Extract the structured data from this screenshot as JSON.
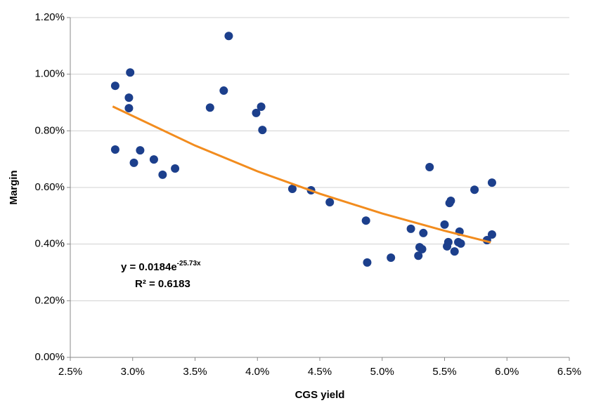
{
  "chart_data": {
    "type": "scatter",
    "x_label": "CGS yield",
    "y_label": "Margin",
    "xlim": [
      2.5,
      6.5
    ],
    "ylim": [
      0,
      1.2
    ],
    "xticks": [
      {
        "value": 2.5,
        "label": "2.5%"
      },
      {
        "value": 3.0,
        "label": "3.0%"
      },
      {
        "value": 3.5,
        "label": "3.5%"
      },
      {
        "value": 4.0,
        "label": "4.0%"
      },
      {
        "value": 4.5,
        "label": "4.5%"
      },
      {
        "value": 5.0,
        "label": "5.0%"
      },
      {
        "value": 5.5,
        "label": "5.5%"
      },
      {
        "value": 6.0,
        "label": "6.0%"
      },
      {
        "value": 6.5,
        "label": "6.5%"
      }
    ],
    "yticks": [
      {
        "value": 0,
        "label": "0.00%"
      },
      {
        "value": 0.2,
        "label": "0.20%"
      },
      {
        "value": 0.4,
        "label": "0.40%"
      },
      {
        "value": 0.6,
        "label": "0.60%"
      },
      {
        "value": 0.8,
        "label": "0.80%"
      },
      {
        "value": 1.0,
        "label": "1.00%"
      },
      {
        "value": 1.2,
        "label": "1.20%"
      }
    ],
    "grid": true,
    "color": "#1c3f8c",
    "x": [
      2.86,
      2.98,
      2.97,
      2.97,
      2.86,
      3.01,
      3.06,
      3.17,
      3.24,
      3.34,
      3.62,
      3.73,
      3.77,
      3.99,
      4.03,
      4.04,
      4.28,
      4.43,
      4.58,
      4.87,
      4.88,
      5.07,
      5.23,
      5.29,
      5.3,
      5.32,
      5.33,
      5.38,
      5.5,
      5.52,
      5.53,
      5.54,
      5.55,
      5.58,
      5.61,
      5.62,
      5.63,
      5.74,
      5.84,
      5.88,
      5.88
    ],
    "values": [
      0.959,
      1.006,
      0.917,
      0.88,
      0.734,
      0.687,
      0.731,
      0.699,
      0.645,
      0.667,
      0.882,
      0.942,
      1.135,
      0.863,
      0.885,
      0.803,
      0.595,
      0.59,
      0.548,
      0.483,
      0.335,
      0.352,
      0.454,
      0.359,
      0.389,
      0.382,
      0.439,
      0.672,
      0.469,
      0.392,
      0.407,
      0.545,
      0.553,
      0.374,
      0.407,
      0.444,
      0.402,
      0.592,
      0.414,
      0.617,
      0.434
    ],
    "trendline": {
      "color": "#f28c1e",
      "x": [
        2.84,
        3.5,
        4.0,
        4.5,
        5.0,
        5.5,
        5.87
      ],
      "values": [
        0.886,
        0.748,
        0.657,
        0.578,
        0.508,
        0.447,
        0.406
      ]
    },
    "equation": {
      "base": "y = 0.0184e",
      "exponent": "-25.73x"
    },
    "r_squared": "R² = 0.6183"
  }
}
